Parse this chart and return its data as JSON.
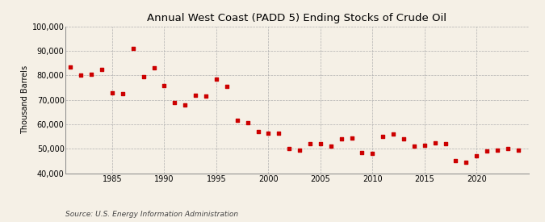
{
  "title": "Annual West Coast (PADD 5) Ending Stocks of Crude Oil",
  "ylabel": "Thousand Barrels",
  "source": "Source: U.S. Energy Information Administration",
  "background_color": "#f5f0e6",
  "marker_color": "#cc0000",
  "ylim": [
    40000,
    100000
  ],
  "yticks": [
    40000,
    50000,
    60000,
    70000,
    80000,
    90000,
    100000
  ],
  "xlim": [
    1980.5,
    2025
  ],
  "xticks": [
    1985,
    1990,
    1995,
    2000,
    2005,
    2010,
    2015,
    2020
  ],
  "years": [
    1981,
    1982,
    1983,
    1984,
    1985,
    1986,
    1987,
    1988,
    1989,
    1990,
    1991,
    1992,
    1993,
    1994,
    1995,
    1996,
    1997,
    1998,
    1999,
    2000,
    2001,
    2002,
    2003,
    2004,
    2005,
    2006,
    2007,
    2008,
    2009,
    2010,
    2011,
    2012,
    2013,
    2014,
    2015,
    2016,
    2017,
    2018,
    2019,
    2020,
    2021,
    2022,
    2023,
    2024
  ],
  "values": [
    83500,
    80000,
    80500,
    82500,
    73000,
    72500,
    91000,
    79500,
    83000,
    76000,
    69000,
    68000,
    72000,
    71500,
    78500,
    75500,
    61500,
    60500,
    57000,
    56500,
    56500,
    50000,
    49500,
    52000,
    52000,
    51000,
    54000,
    54500,
    48500,
    48000,
    55000,
    56000,
    54000,
    51000,
    51500,
    52500,
    52000,
    45000,
    44500,
    47000,
    49000,
    49500,
    50000,
    49500
  ],
  "title_fontsize": 9.5,
  "axis_label_fontsize": 7,
  "tick_fontsize": 7,
  "source_fontsize": 6.5
}
